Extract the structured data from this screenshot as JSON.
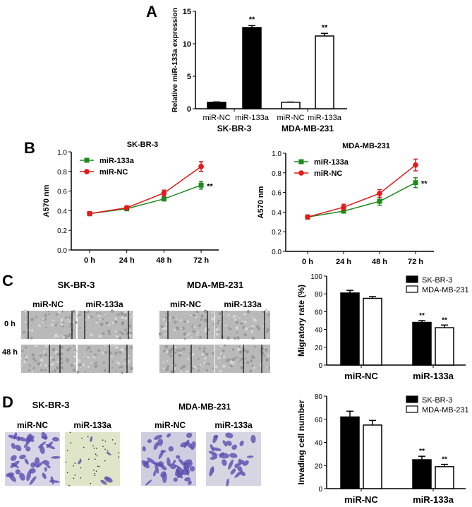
{
  "panel_labels": [
    "A",
    "B",
    "C",
    "D"
  ],
  "colors": {
    "red": "#e41a1c",
    "green": "#1e8a1e",
    "black": "#000000",
    "white": "#ffffff",
    "stain": "#5b4fb0"
  },
  "chart_data": [
    {
      "id": "A",
      "type": "bar",
      "ylabel": "Relative miR-133a expression",
      "ylim": [
        0,
        15
      ],
      "yticks": [
        "0",
        "5",
        "10",
        "15"
      ],
      "categories": [
        "miR-NC",
        "miR-133a",
        "miR-NC",
        "miR-133a"
      ],
      "groups": [
        "SK-BR-3",
        "MDA-MB-231"
      ],
      "values": [
        1.0,
        12.5,
        1.0,
        11.2
      ],
      "errors": [
        0.05,
        0.3,
        0.03,
        0.4
      ],
      "fills": [
        "#000000",
        "#000000",
        "#ffffff",
        "#ffffff"
      ],
      "annotations": [
        "",
        "**",
        "",
        "**"
      ]
    },
    {
      "id": "B1",
      "type": "line",
      "title": "SK-BR-3",
      "ylabel": "A570 nm",
      "ylim": [
        0,
        1.0
      ],
      "yticks": [
        "0.0",
        "0.2",
        "0.4",
        "0.6",
        "0.8",
        "1.0"
      ],
      "x": [
        "0 h",
        "24 h",
        "48 h",
        "72 h"
      ],
      "legend": "top-left",
      "series": [
        {
          "name": "miR-133a",
          "color": "#1e8a1e",
          "marker": "square",
          "values": [
            0.37,
            0.42,
            0.52,
            0.66
          ],
          "errors": [
            0.02,
            0.02,
            0.02,
            0.04
          ]
        },
        {
          "name": "miR-NC",
          "color": "#e41a1c",
          "marker": "circle",
          "values": [
            0.37,
            0.43,
            0.58,
            0.85
          ],
          "errors": [
            0.02,
            0.02,
            0.03,
            0.05
          ]
        }
      ],
      "annotation": "**"
    },
    {
      "id": "B2",
      "type": "line",
      "title": "MDA-MB-231",
      "ylabel": "A570 nm",
      "ylim": [
        0,
        1.0
      ],
      "yticks": [
        "0.0",
        "0.2",
        "0.4",
        "0.6",
        "0.8",
        "1.0"
      ],
      "x": [
        "0 h",
        "24 h",
        "48 h",
        "72 h"
      ],
      "legend": "top-left",
      "series": [
        {
          "name": "miR-133a",
          "color": "#1e8a1e",
          "marker": "square",
          "values": [
            0.35,
            0.41,
            0.51,
            0.7
          ],
          "errors": [
            0.02,
            0.02,
            0.04,
            0.05
          ]
        },
        {
          "name": "miR-NC",
          "color": "#e41a1c",
          "marker": "circle",
          "values": [
            0.35,
            0.45,
            0.59,
            0.88
          ],
          "errors": [
            0.02,
            0.03,
            0.04,
            0.06
          ]
        }
      ],
      "annotation": "**"
    },
    {
      "id": "C",
      "type": "bar",
      "ylabel": "Migratory rate (%)",
      "ylim": [
        0,
        100
      ],
      "yticks": [
        "0",
        "20",
        "40",
        "60",
        "80",
        "100"
      ],
      "categories": [
        "miR-NC",
        "miR-133a"
      ],
      "legend": "top-right",
      "series": [
        {
          "name": "SK-BR-3",
          "fill": "#000000",
          "values": [
            81,
            48
          ],
          "errors": [
            3,
            2
          ],
          "annotations": [
            "",
            "**"
          ]
        },
        {
          "name": "MDA-MB-231",
          "fill": "#ffffff",
          "values": [
            75,
            42
          ],
          "errors": [
            2,
            3
          ],
          "annotations": [
            "",
            "**"
          ]
        }
      ]
    },
    {
      "id": "D",
      "type": "bar",
      "ylabel": "Invading cell number",
      "ylim": [
        0,
        80
      ],
      "yticks": [
        "0",
        "20",
        "40",
        "60",
        "80"
      ],
      "categories": [
        "miR-NC",
        "miR-133a"
      ],
      "legend": "top-right",
      "series": [
        {
          "name": "SK-BR-3",
          "fill": "#000000",
          "values": [
            62,
            25
          ],
          "errors": [
            5,
            3
          ],
          "annotations": [
            "",
            "**"
          ]
        },
        {
          "name": "MDA-MB-231",
          "fill": "#ffffff",
          "values": [
            55,
            19
          ],
          "errors": [
            4,
            2
          ],
          "annotations": [
            "",
            "**"
          ]
        }
      ]
    }
  ],
  "panel_c_images": {
    "cell_lines": [
      "SK-BR-3",
      "MDA-MB-231"
    ],
    "columns": [
      "miR-NC",
      "miR-133a",
      "miR-NC",
      "miR-133a"
    ],
    "rows": [
      "0 h",
      "48 h"
    ]
  },
  "panel_d_images": {
    "cell_lines": [
      "SK-BR-3",
      "MDA-MB-231"
    ],
    "columns": [
      "miR-NC",
      "miR-133a",
      "miR-NC",
      "miR-133a"
    ]
  }
}
